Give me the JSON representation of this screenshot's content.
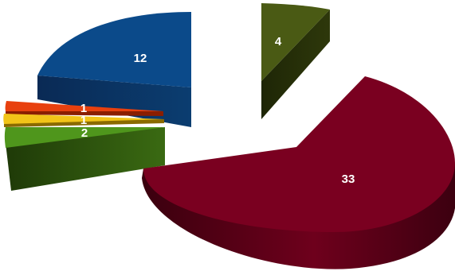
{
  "chart_data": {
    "type": "pie",
    "style": "3d-exploded",
    "legend": "none",
    "slices": [
      {
        "value": 33,
        "label": "33",
        "color": "#7a0020"
      },
      {
        "value": 12,
        "label": "12",
        "color": "#0b4a8a"
      },
      {
        "value": 4,
        "label": "4",
        "color": "#3d4a10"
      },
      {
        "value": 2,
        "label": "2",
        "color": "#4a8a1a"
      },
      {
        "value": 1,
        "label": "1",
        "color": "#f2c418"
      },
      {
        "value": 1,
        "label": "1",
        "color": "#e8400e"
      }
    ]
  }
}
